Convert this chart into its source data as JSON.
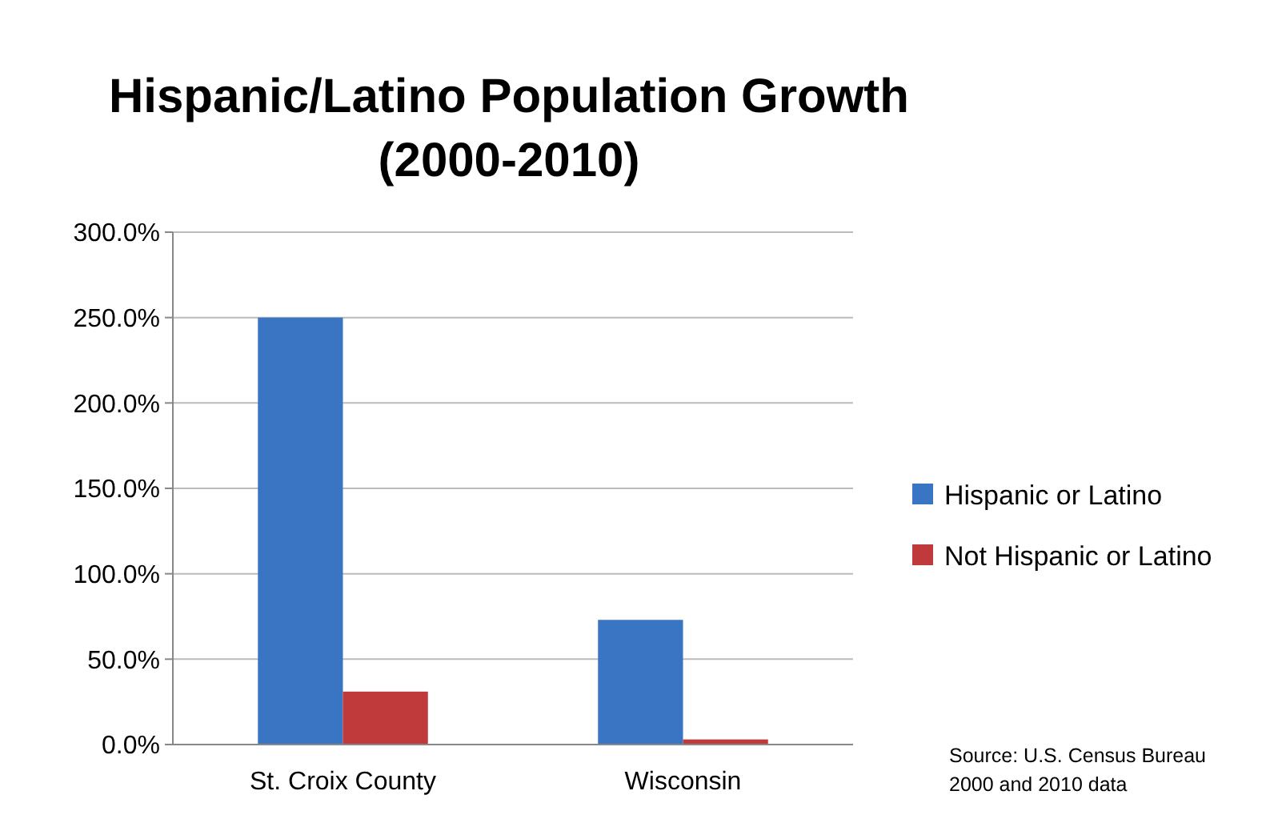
{
  "chart_data": {
    "type": "bar",
    "title": "Hispanic/Latino Population Growth (2000-2010)",
    "categories": [
      "St. Croix County",
      "Wisconsin"
    ],
    "series": [
      {
        "name": "Hispanic or Latino",
        "color": "#3a75c4",
        "values": [
          250,
          73
        ]
      },
      {
        "name": "Not Hispanic or Latino",
        "color": "#c0393b",
        "values": [
          31,
          3
        ]
      }
    ],
    "ylim": [
      0,
      300
    ],
    "yticks": [
      {
        "value": 0,
        "label": "0.0%"
      },
      {
        "value": 50,
        "label": "50.0%"
      },
      {
        "value": 100,
        "label": "100.0%"
      },
      {
        "value": 150,
        "label": "150.0%"
      },
      {
        "value": 200,
        "label": "200.0%"
      },
      {
        "value": 250,
        "label": "250.0%"
      },
      {
        "value": 300,
        "label": "300.0%"
      }
    ],
    "grid": "y",
    "legend": "right",
    "annotations": [
      "Source: U.S. Census Bureau 2000 and 2010 data"
    ]
  }
}
